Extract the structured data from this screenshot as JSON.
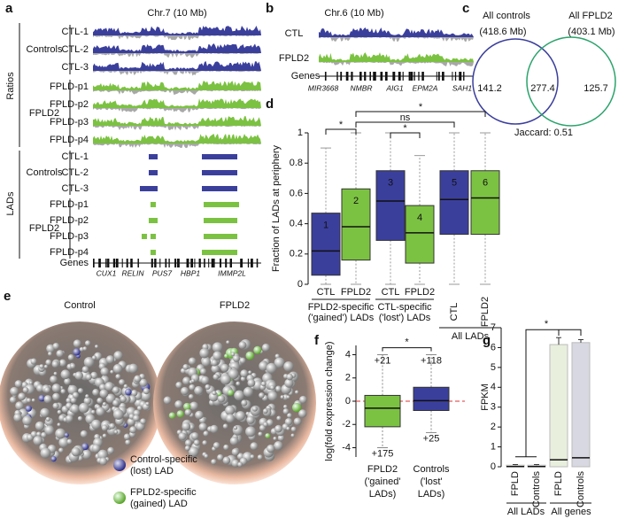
{
  "panel_labels": [
    "a",
    "b",
    "c",
    "d",
    "e",
    "f",
    "g"
  ],
  "panel_a": {
    "title": "Chr.7 (10 Mb)",
    "side_labels": [
      "Ratios",
      "LADs"
    ],
    "groups": [
      "Controls",
      "FPLD2",
      "Controls",
      "FPLD2"
    ],
    "ratio_rows": [
      "CTL-1",
      "CTL-2",
      "CTL-3",
      "FPLD-p1",
      "FPLD-p2",
      "FPLD-p3",
      "FPLD-p4"
    ],
    "lad_rows": [
      "CTL-1",
      "CTL-2",
      "CTL-3",
      "FPLD-p1",
      "FPLD-p2",
      "FPLD-p3",
      "FPLD-p4"
    ],
    "genes_label": "Genes",
    "genes": [
      "CUX1",
      "RELIN",
      "PUS7",
      "HBP1",
      "IMMP2L"
    ]
  },
  "panel_b": {
    "title": "Chr.6 (10 Mb)",
    "rows": [
      "CTL",
      "FPLD2"
    ],
    "genes_label": "Genes",
    "genes": [
      "MIR3668",
      "NMBR",
      "AIG1",
      "EPM2A",
      "SAH1"
    ]
  },
  "panel_c": {
    "left_label": "All controls",
    "left_size": "(418.6 Mb)",
    "right_label": "All FPLD2",
    "right_size": "(403.1 Mb)",
    "values": [
      141.2,
      277.4,
      125.7
    ],
    "jaccard": "Jaccard: 0.51"
  },
  "panel_e": {
    "titles": [
      "Control",
      "FPLD2"
    ],
    "legend": [
      {
        "lines": [
          "Control-specific",
          "(lost) LAD"
        ],
        "color": "#3b3f9c"
      },
      {
        "lines": [
          "FPLD2-specific",
          "(gained) LAD"
        ],
        "color": "#7cc242"
      }
    ]
  },
  "chart_data": [
    {
      "type": "box",
      "ylabel": "Fraction of LADs at periphery",
      "ylim": [
        0,
        1
      ],
      "yticks": [
        0,
        0.2,
        0.4,
        0.6,
        0.8,
        1
      ],
      "categories": [
        "CTL",
        "FPLD2",
        "CTL",
        "FPLD2",
        "CTL",
        "FPLD2"
      ],
      "label_colors": [
        "#3b3f9c",
        "#3aa655",
        "#3b3f9c",
        "#3aa655",
        "#3b3f9c",
        "#3aa655"
      ],
      "box_labels": [
        "1",
        "2",
        "3",
        "4",
        "5",
        "6"
      ],
      "boxes": [
        {
          "low": 0,
          "q1": 0.06,
          "median": 0.22,
          "q3": 0.47,
          "high": 0.9,
          "color": "#3b3f9c"
        },
        {
          "low": 0,
          "q1": 0.16,
          "median": 0.38,
          "q3": 0.63,
          "high": 1,
          "color": "#7cc242"
        },
        {
          "low": 0,
          "q1": 0.29,
          "median": 0.55,
          "q3": 0.75,
          "high": 1,
          "color": "#3b3f9c"
        },
        {
          "low": 0,
          "q1": 0.14,
          "median": 0.34,
          "q3": 0.52,
          "high": 0.85,
          "color": "#7cc242"
        },
        {
          "low": 0,
          "q1": 0.33,
          "median": 0.56,
          "q3": 0.75,
          "high": 1,
          "color": "#3b3f9c"
        },
        {
          "low": 0,
          "q1": 0.33,
          "median": 0.57,
          "q3": 0.75,
          "high": 1,
          "color": "#7cc242"
        }
      ],
      "groups": [
        [
          "FPLD2-specific",
          "('gained') LADs"
        ],
        [
          "CTL-specific",
          "('lost') LADs"
        ],
        [
          "All LADs"
        ]
      ],
      "significance": [
        "*",
        "*",
        "ns",
        "*"
      ]
    },
    {
      "type": "box",
      "ylabel": "log(fold expression change)",
      "ylim": [
        -4.8,
        4.8
      ],
      "yticks": [
        -4,
        -2,
        0,
        2,
        4
      ],
      "reference_line": 0,
      "categories": [
        [
          "FPLD2",
          "('gained'",
          "LADs)"
        ],
        [
          "Controls",
          "('lost'",
          "LADs)"
        ]
      ],
      "boxes": [
        {
          "low": -4,
          "q1": -2.2,
          "median": -0.6,
          "q3": 0.5,
          "high": 4,
          "color": "#7cc242"
        },
        {
          "low": -2.7,
          "q1": -0.8,
          "median": 0.05,
          "q3": 1.2,
          "high": 4,
          "color": "#3b3f9c"
        }
      ],
      "outlier_counts": [
        [
          "+21",
          "+175"
        ],
        [
          "+118",
          "+25"
        ]
      ],
      "significance": [
        "*"
      ]
    },
    {
      "type": "bar",
      "ylabel": "FPKM",
      "ylim": [
        0,
        7
      ],
      "yticks": [
        0,
        1,
        2,
        3,
        4,
        5,
        6,
        7
      ],
      "categories": [
        "FPLD",
        "Controls",
        "FPLD",
        "Controls"
      ],
      "label_colors": [
        "#3aa655",
        "#3b3f9c",
        "#3aa655",
        "#3b3f9c"
      ],
      "colors": [
        "#eef3e2",
        "#e6e6ee",
        "#e8efdc",
        "#d8d8e2"
      ],
      "values": [
        0.08,
        0.08,
        6.15,
        6.25
      ],
      "errors": [
        0.03,
        0.03,
        0.35,
        0.15
      ],
      "medians": [
        0.01,
        0.01,
        0.35,
        0.45
      ],
      "groups": [
        "All LADs",
        "All genes"
      ],
      "significance": [
        "*"
      ]
    }
  ]
}
